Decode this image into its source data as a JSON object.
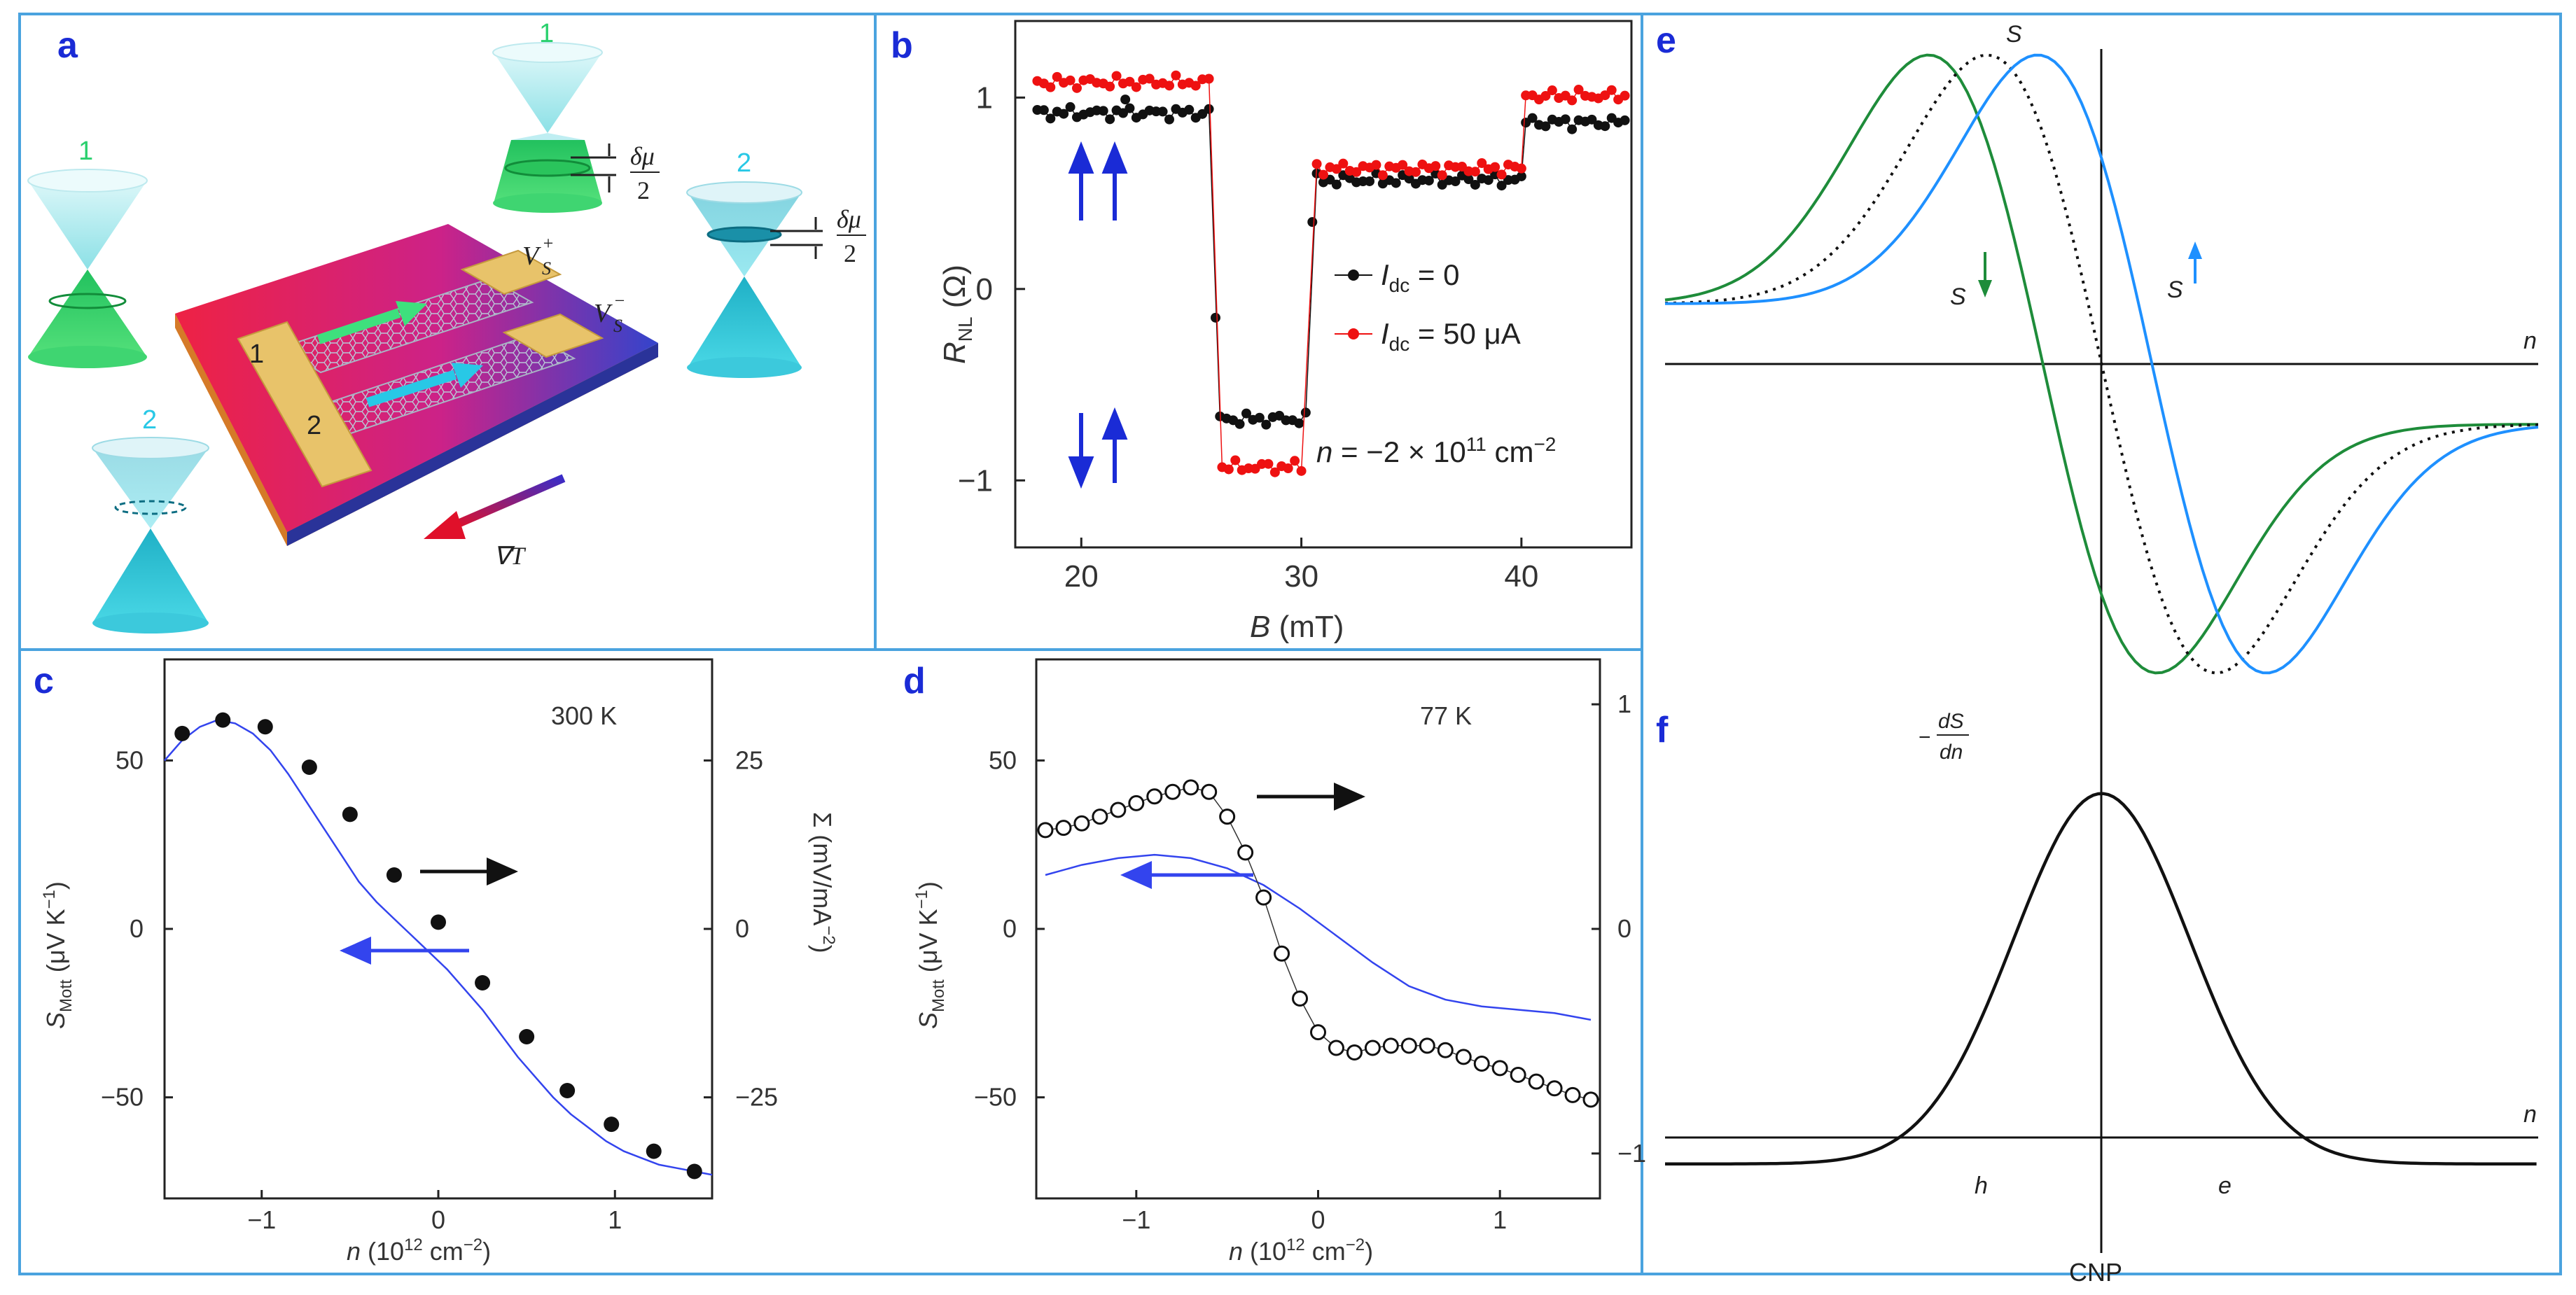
{
  "figure": {
    "colors": {
      "panel_label": "#1a2bd6",
      "frame": "#4aa3df",
      "black_series": "#111111",
      "red_series": "#ee1111",
      "blue_line": "#3344ee",
      "green": "#1e8c3a",
      "cyan_blue": "#1e90ff",
      "spin_arrow": "#1a2bd6"
    }
  },
  "panel_a": {
    "label": "a",
    "cone_labels": [
      "1",
      "1",
      "2",
      "2"
    ],
    "delta_mu_label": "δμ",
    "half_denominator": "2",
    "vs_plus": "V",
    "vs_plus_sup": "+",
    "vs_plus_sub": "S",
    "vs_minus": "V",
    "vs_minus_sup": "−",
    "vs_minus_sub": "S",
    "electrode_1": "1",
    "electrode_2": "2",
    "gradient_label": "∇T",
    "icons": [
      "dirac-cone-icon",
      "graphene-device-icon",
      "temperature-gradient-arrow-icon"
    ]
  },
  "chart_data": [
    {
      "panel": "b",
      "label": "b",
      "type": "scatter",
      "xlabel": "B (mT)",
      "ylabel": "R_NL (Ω)",
      "ylabel_main": "R",
      "ylabel_sub": "NL",
      "ylabel_unit": " (Ω)",
      "xlabel_main": "B",
      "xlabel_unit": " (mT)",
      "xlim": [
        17,
        45
      ],
      "ylim": [
        -1.35,
        1.4
      ],
      "xticks": [
        20,
        30,
        40
      ],
      "yticks": [
        -1,
        0,
        1
      ],
      "ytick_labels": [
        "−1",
        "0",
        "1"
      ],
      "legend_placement": "center-right",
      "legend": [
        {
          "prefix": "I",
          "sub": "dc",
          "text": " = 0"
        },
        {
          "prefix": "I",
          "sub": "dc",
          "text": " = 50 μA"
        }
      ],
      "annotation": "n = −2 × 10¹¹ cm⁻²",
      "annotation_parts": {
        "n": "n",
        "eq": " = −2 × 10",
        "exp": "11",
        "unit": " cm",
        "unit_exp": "−2"
      },
      "spin_arrows_top": "↑↑",
      "spin_arrows_bottom": "↓↑",
      "series": [
        {
          "name": "I_dc = 0",
          "color": "#111111",
          "segments": [
            {
              "x_start": 18.0,
              "x_end": 26.0,
              "y": 0.92
            },
            {
              "x_start": 26.3,
              "x_end": 30.2,
              "y": -0.68
            },
            {
              "x_start": 30.7,
              "x_end": 40.0,
              "y": 0.57
            },
            {
              "x_start": 40.2,
              "x_end": 44.8,
              "y": 0.87
            }
          ],
          "outliers": [
            {
              "x": 26.1,
              "y": -0.15
            },
            {
              "x": 22.0,
              "y": 0.99
            },
            {
              "x": 30.5,
              "y": 0.35
            }
          ]
        },
        {
          "name": "I_dc = 50 μA",
          "color": "#ee1111",
          "segments": [
            {
              "x_start": 18.0,
              "x_end": 26.0,
              "y": 1.08
            },
            {
              "x_start": 26.4,
              "x_end": 30.2,
              "y": -0.93
            },
            {
              "x_start": 30.7,
              "x_end": 40.0,
              "y": 0.63
            },
            {
              "x_start": 40.2,
              "x_end": 44.8,
              "y": 1.01
            }
          ],
          "outliers": []
        }
      ]
    },
    {
      "panel": "c",
      "label": "c",
      "type": "line",
      "annotation": "300 K",
      "xlabel": "n (10¹² cm⁻²)",
      "xlabel_main": "n",
      "xlabel_rest": " (10",
      "xlabel_exp": "12",
      "xlabel_unit": " cm",
      "xlabel_unit_exp": "−2",
      "xlabel_close": ")",
      "ylabel_left": "S_Mott (μV K⁻¹)",
      "ylabel_left_main": "S",
      "ylabel_left_sub": "Mott",
      "ylabel_left_unit": " (μV K",
      "ylabel_left_exp": "−1",
      "ylabel_left_close": ")",
      "ylabel_right": "Σ (mV/mA⁻²)",
      "ylabel_right_main": "Σ (mV/mA",
      "ylabel_right_exp": "−2",
      "ylabel_right_close": ")",
      "xlim": [
        -1.55,
        1.55
      ],
      "ylim": [
        -80,
        80
      ],
      "xticks": [
        -1,
        0,
        1
      ],
      "xtick_labels": [
        "−1",
        "0",
        "1"
      ],
      "yticks": [
        -50,
        0,
        50
      ],
      "ytick_labels": [
        "−50",
        "0",
        "50"
      ],
      "yticks_right": [
        -25,
        0,
        25
      ],
      "ytick_labels_right": [
        "−25",
        "0",
        "25"
      ],
      "series": [
        {
          "name": "S_Mott",
          "color": "#3344ee",
          "x": [
            -1.55,
            -1.45,
            -1.35,
            -1.25,
            -1.15,
            -1.05,
            -0.95,
            -0.85,
            -0.75,
            -0.65,
            -0.55,
            -0.45,
            -0.35,
            -0.25,
            -0.15,
            -0.05,
            0.05,
            0.15,
            0.25,
            0.35,
            0.45,
            0.55,
            0.65,
            0.75,
            0.85,
            0.95,
            1.05,
            1.15,
            1.25,
            1.35,
            1.45,
            1.55
          ],
          "y": [
            50,
            56,
            60,
            62,
            61,
            58,
            53,
            46,
            38,
            30,
            22,
            14,
            8,
            3,
            -2,
            -7,
            -12,
            -18,
            -24,
            -31,
            -38,
            -44,
            -50,
            -55,
            -59,
            -63,
            -66,
            -68,
            -70,
            -71,
            -72,
            -73
          ]
        },
        {
          "name": "Σ",
          "color": "#111111",
          "axis": "right",
          "x": [
            -1.45,
            -1.22,
            -0.98,
            -0.73,
            -0.5,
            -0.25,
            0.0,
            0.25,
            0.5,
            0.73,
            0.98,
            1.22,
            1.45
          ],
          "y": [
            29,
            31,
            30,
            24,
            17,
            8,
            1,
            -8,
            -16,
            -24,
            -29,
            -33,
            -36
          ]
        }
      ]
    },
    {
      "panel": "d",
      "label": "d",
      "type": "line",
      "annotation": "77 K",
      "xlabel": "n (10¹² cm⁻²)",
      "xlabel_main": "n",
      "xlabel_rest": " (10",
      "xlabel_exp": "12",
      "xlabel_unit": " cm",
      "xlabel_unit_exp": "−2",
      "xlabel_close": ")",
      "ylabel_left": "S_Mott (μV K⁻¹)",
      "ylabel_left_main": "S",
      "ylabel_left_sub": "Mott",
      "ylabel_left_unit": " (μV K",
      "ylabel_left_exp": "−1",
      "ylabel_left_close": ")",
      "xlim": [
        -1.55,
        1.55
      ],
      "ylim": [
        -80,
        80
      ],
      "xticks": [
        -1,
        0,
        1
      ],
      "xtick_labels": [
        "−1",
        "0",
        "1"
      ],
      "yticks": [
        -50,
        0,
        50
      ],
      "ytick_labels": [
        "−50",
        "0",
        "50"
      ],
      "yticks_right": [
        -1,
        0,
        1
      ],
      "ytick_labels_right": [
        "−1",
        "0",
        "1"
      ],
      "series": [
        {
          "name": "S_Mott",
          "color": "#3344ee",
          "x": [
            -1.5,
            -1.3,
            -1.1,
            -0.9,
            -0.7,
            -0.5,
            -0.3,
            -0.1,
            0.1,
            0.3,
            0.5,
            0.7,
            0.9,
            1.1,
            1.3,
            1.5
          ],
          "y": [
            16,
            19,
            21,
            22,
            21,
            18,
            13,
            6,
            -2,
            -10,
            -17,
            -21,
            -23,
            -24,
            -25,
            -27
          ]
        },
        {
          "name": "right-axis",
          "color": "#111111",
          "axis": "right",
          "x": [
            -1.5,
            -1.4,
            -1.3,
            -1.2,
            -1.1,
            -1.0,
            -0.9,
            -0.8,
            -0.7,
            -0.6,
            -0.5,
            -0.4,
            -0.3,
            -0.2,
            -0.1,
            0.0,
            0.1,
            0.2,
            0.3,
            0.4,
            0.5,
            0.6,
            0.7,
            0.8,
            0.9,
            1.0,
            1.1,
            1.2,
            1.3,
            1.4,
            1.5
          ],
          "y": [
            0.44,
            0.45,
            0.47,
            0.5,
            0.53,
            0.56,
            0.59,
            0.61,
            0.63,
            0.61,
            0.5,
            0.34,
            0.14,
            -0.11,
            -0.31,
            -0.46,
            -0.53,
            -0.55,
            -0.53,
            -0.52,
            -0.52,
            -0.52,
            -0.54,
            -0.57,
            -0.6,
            -0.62,
            -0.65,
            -0.68,
            -0.71,
            -0.74,
            -0.76
          ]
        }
      ]
    },
    {
      "panel": "e",
      "label": "e",
      "type": "line",
      "top_label": "S",
      "x_axis_label": "n",
      "s_down_label": "S",
      "s_up_label": "S",
      "series": [
        {
          "name": "S↓",
          "color": "#1e8c3a",
          "shift": -0.35
        },
        {
          "name": "S",
          "color": "#111111",
          "shift": 0.0,
          "style": "dotted"
        },
        {
          "name": "S↑",
          "color": "#1e90ff",
          "shift": 0.3
        }
      ]
    },
    {
      "panel": "f",
      "label": "f",
      "type": "line",
      "ylabel_num": "dS",
      "ylabel_den": "dn",
      "ylabel_minus": "−",
      "x_axis_label": "n",
      "hole_label": "h",
      "electron_label": "e",
      "cnp_label": "CNP",
      "series": [
        {
          "name": "−dS/dn",
          "color": "#111111"
        }
      ]
    }
  ]
}
